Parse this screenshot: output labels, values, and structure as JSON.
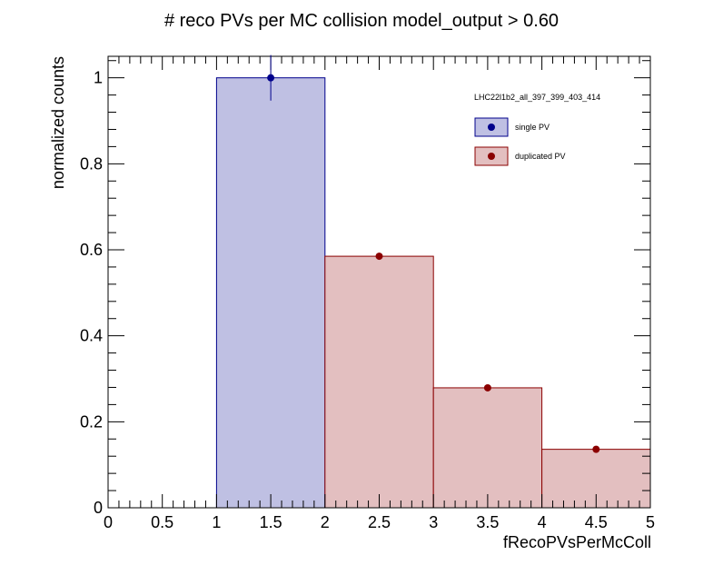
{
  "chart_data": {
    "type": "bar",
    "title": "# reco PVs per MC collision  model_output > 0.60",
    "xlabel": "fRecoPVsPerMcColl",
    "ylabel": "normalized counts",
    "xlim": [
      0,
      5
    ],
    "ylim": [
      0,
      1.05
    ],
    "x_ticks": [
      {
        "value": 0,
        "label": "0"
      },
      {
        "value": 0.5,
        "label": "0.5"
      },
      {
        "value": 1,
        "label": "1"
      },
      {
        "value": 1.5,
        "label": "1.5"
      },
      {
        "value": 2,
        "label": "2"
      },
      {
        "value": 2.5,
        "label": "2.5"
      },
      {
        "value": 3,
        "label": "3"
      },
      {
        "value": 3.5,
        "label": "3.5"
      },
      {
        "value": 4,
        "label": "4"
      },
      {
        "value": 4.5,
        "label": "4.5"
      },
      {
        "value": 5,
        "label": "5"
      }
    ],
    "y_ticks": [
      {
        "value": 0,
        "label": "0"
      },
      {
        "value": 0.2,
        "label": "0.2"
      },
      {
        "value": 0.4,
        "label": "0.4"
      },
      {
        "value": 0.6,
        "label": "0.6"
      },
      {
        "value": 0.8,
        "label": "0.8"
      },
      {
        "value": 1,
        "label": "1"
      }
    ],
    "legend": {
      "header": "LHC22l1b2_all_397_399_403_414",
      "placement": "top-right"
    },
    "series": [
      {
        "name": "single PV",
        "line_color": "#00008b",
        "fill_color": "#bfc0e3",
        "marker_color": "#00008b",
        "bins": [
          {
            "low": 1,
            "high": 2,
            "value": 1.0,
            "error": 0.053
          }
        ]
      },
      {
        "name": "duplicated PV",
        "line_color": "#8b0000",
        "fill_color": "#e3bfc0",
        "marker_color": "#8b0000",
        "bins": [
          {
            "low": 2,
            "high": 3,
            "value": 0.585,
            "error": 0.008
          },
          {
            "low": 3,
            "high": 4,
            "value": 0.279,
            "error": 0.005
          },
          {
            "low": 4,
            "high": 5,
            "value": 0.136,
            "error": 0.004
          }
        ]
      }
    ],
    "grid": false
  }
}
